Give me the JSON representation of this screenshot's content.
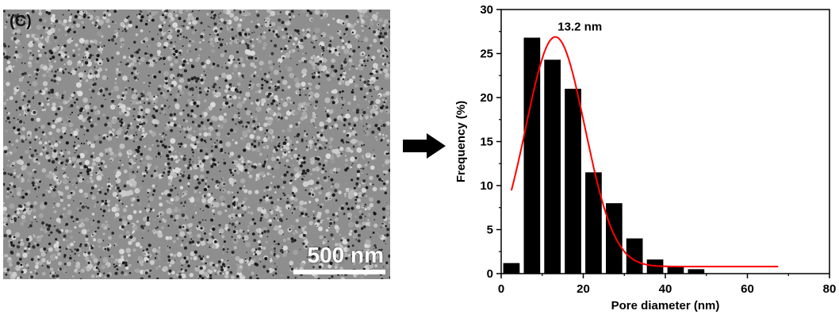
{
  "sem_image": {
    "panel_label": "(C)",
    "scale_bar_label": "500 nm"
  },
  "arrow_icon": "right-arrow-icon",
  "colors": {
    "bars": "#000000",
    "fit_curve": "#ff0000",
    "text": "#000000"
  },
  "chart_data": {
    "type": "bar",
    "xlabel": "Pore diameter (nm)",
    "ylabel": "Frequency (%)",
    "xlim": [
      0,
      80
    ],
    "ylim": [
      0,
      30
    ],
    "xticks": [
      0,
      20,
      40,
      60,
      80
    ],
    "yticks": [
      0,
      5,
      10,
      15,
      20,
      25,
      30
    ],
    "bin_width": 4,
    "bins": [
      {
        "center": 2.5,
        "value": 1.2
      },
      {
        "center": 7.5,
        "value": 26.8
      },
      {
        "center": 12.5,
        "value": 24.3
      },
      {
        "center": 17.5,
        "value": 21.0
      },
      {
        "center": 22.5,
        "value": 11.5
      },
      {
        "center": 27.5,
        "value": 8.0
      },
      {
        "center": 32.5,
        "value": 4.0
      },
      {
        "center": 37.5,
        "value": 1.6
      },
      {
        "center": 42.5,
        "value": 0.8
      },
      {
        "center": 47.5,
        "value": 0.5
      }
    ],
    "fit": {
      "type": "gaussian",
      "peak_x": 13.2,
      "peak_y": 26.9,
      "baseline": 0.8,
      "x_range": [
        2.5,
        67.5
      ],
      "annotation": "13.2 nm"
    }
  }
}
